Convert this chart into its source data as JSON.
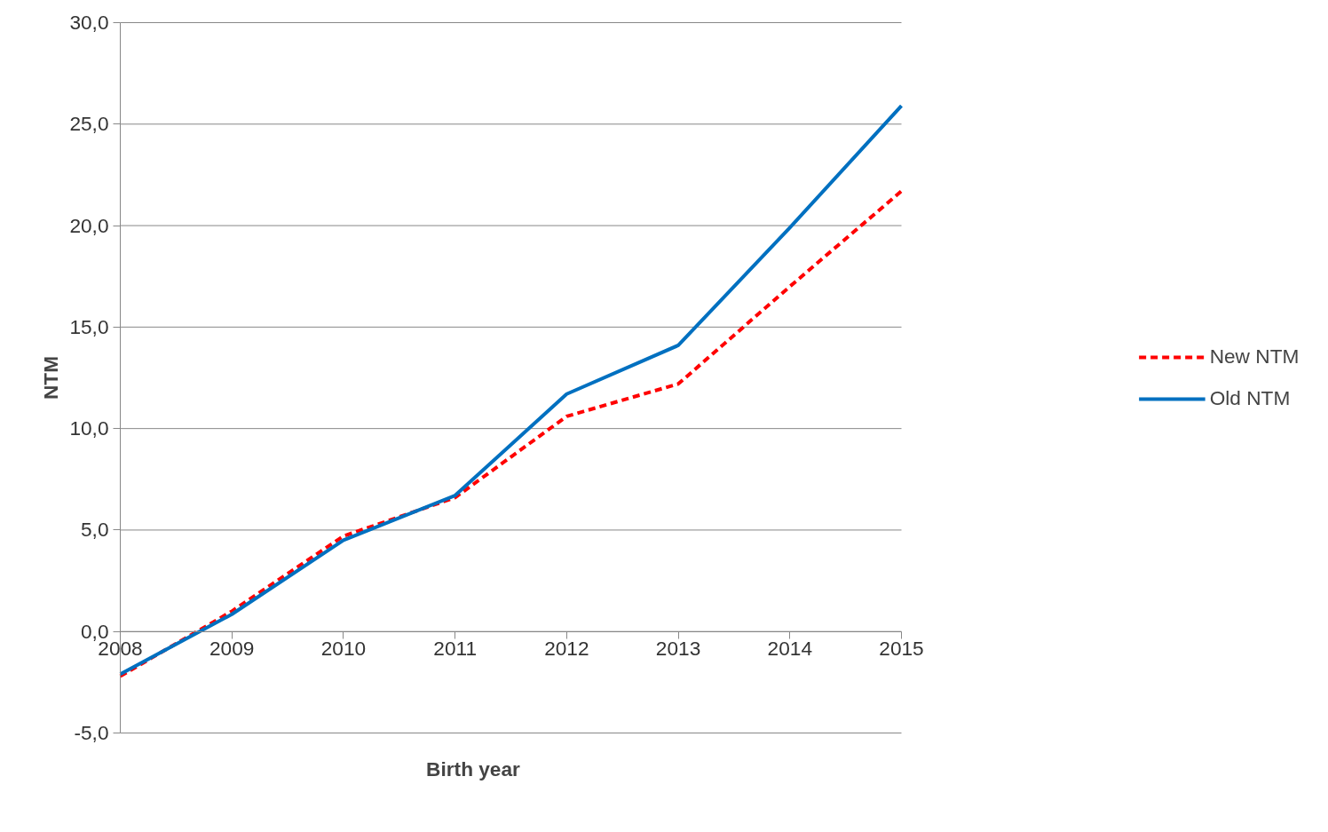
{
  "chart_data": {
    "type": "line",
    "xlabel": "Birth year",
    "ylabel": "NTM",
    "x": [
      2008,
      2009,
      2010,
      2011,
      2012,
      2013,
      2014,
      2015
    ],
    "series": [
      {
        "name": "New NTM",
        "color": "#ff0000",
        "line_style": "dashed",
        "values": [
          -2.2,
          1.0,
          4.7,
          6.6,
          10.6,
          12.2,
          17.0,
          21.7
        ]
      },
      {
        "name": "Old NTM",
        "color": "#0070c0",
        "line_style": "solid",
        "values": [
          -2.1,
          0.85,
          4.5,
          6.7,
          11.7,
          14.1,
          19.9,
          25.9
        ]
      }
    ],
    "xlim": [
      2008,
      2015
    ],
    "xticks": [
      2008,
      2009,
      2010,
      2011,
      2012,
      2013,
      2014,
      2015
    ],
    "ylim": [
      -5,
      30
    ],
    "yticks": [
      {
        "value": -5,
        "label": "-5,0"
      },
      {
        "value": 0,
        "label": "0,0"
      },
      {
        "value": 5,
        "label": "5,0"
      },
      {
        "value": 10,
        "label": "10,0"
      },
      {
        "value": 15,
        "label": "15,0"
      },
      {
        "value": 20,
        "label": "20,0"
      },
      {
        "value": 25,
        "label": "25,0"
      },
      {
        "value": 30,
        "label": "30,0"
      }
    ],
    "grid": "y",
    "legend": "right",
    "marker": "none"
  }
}
